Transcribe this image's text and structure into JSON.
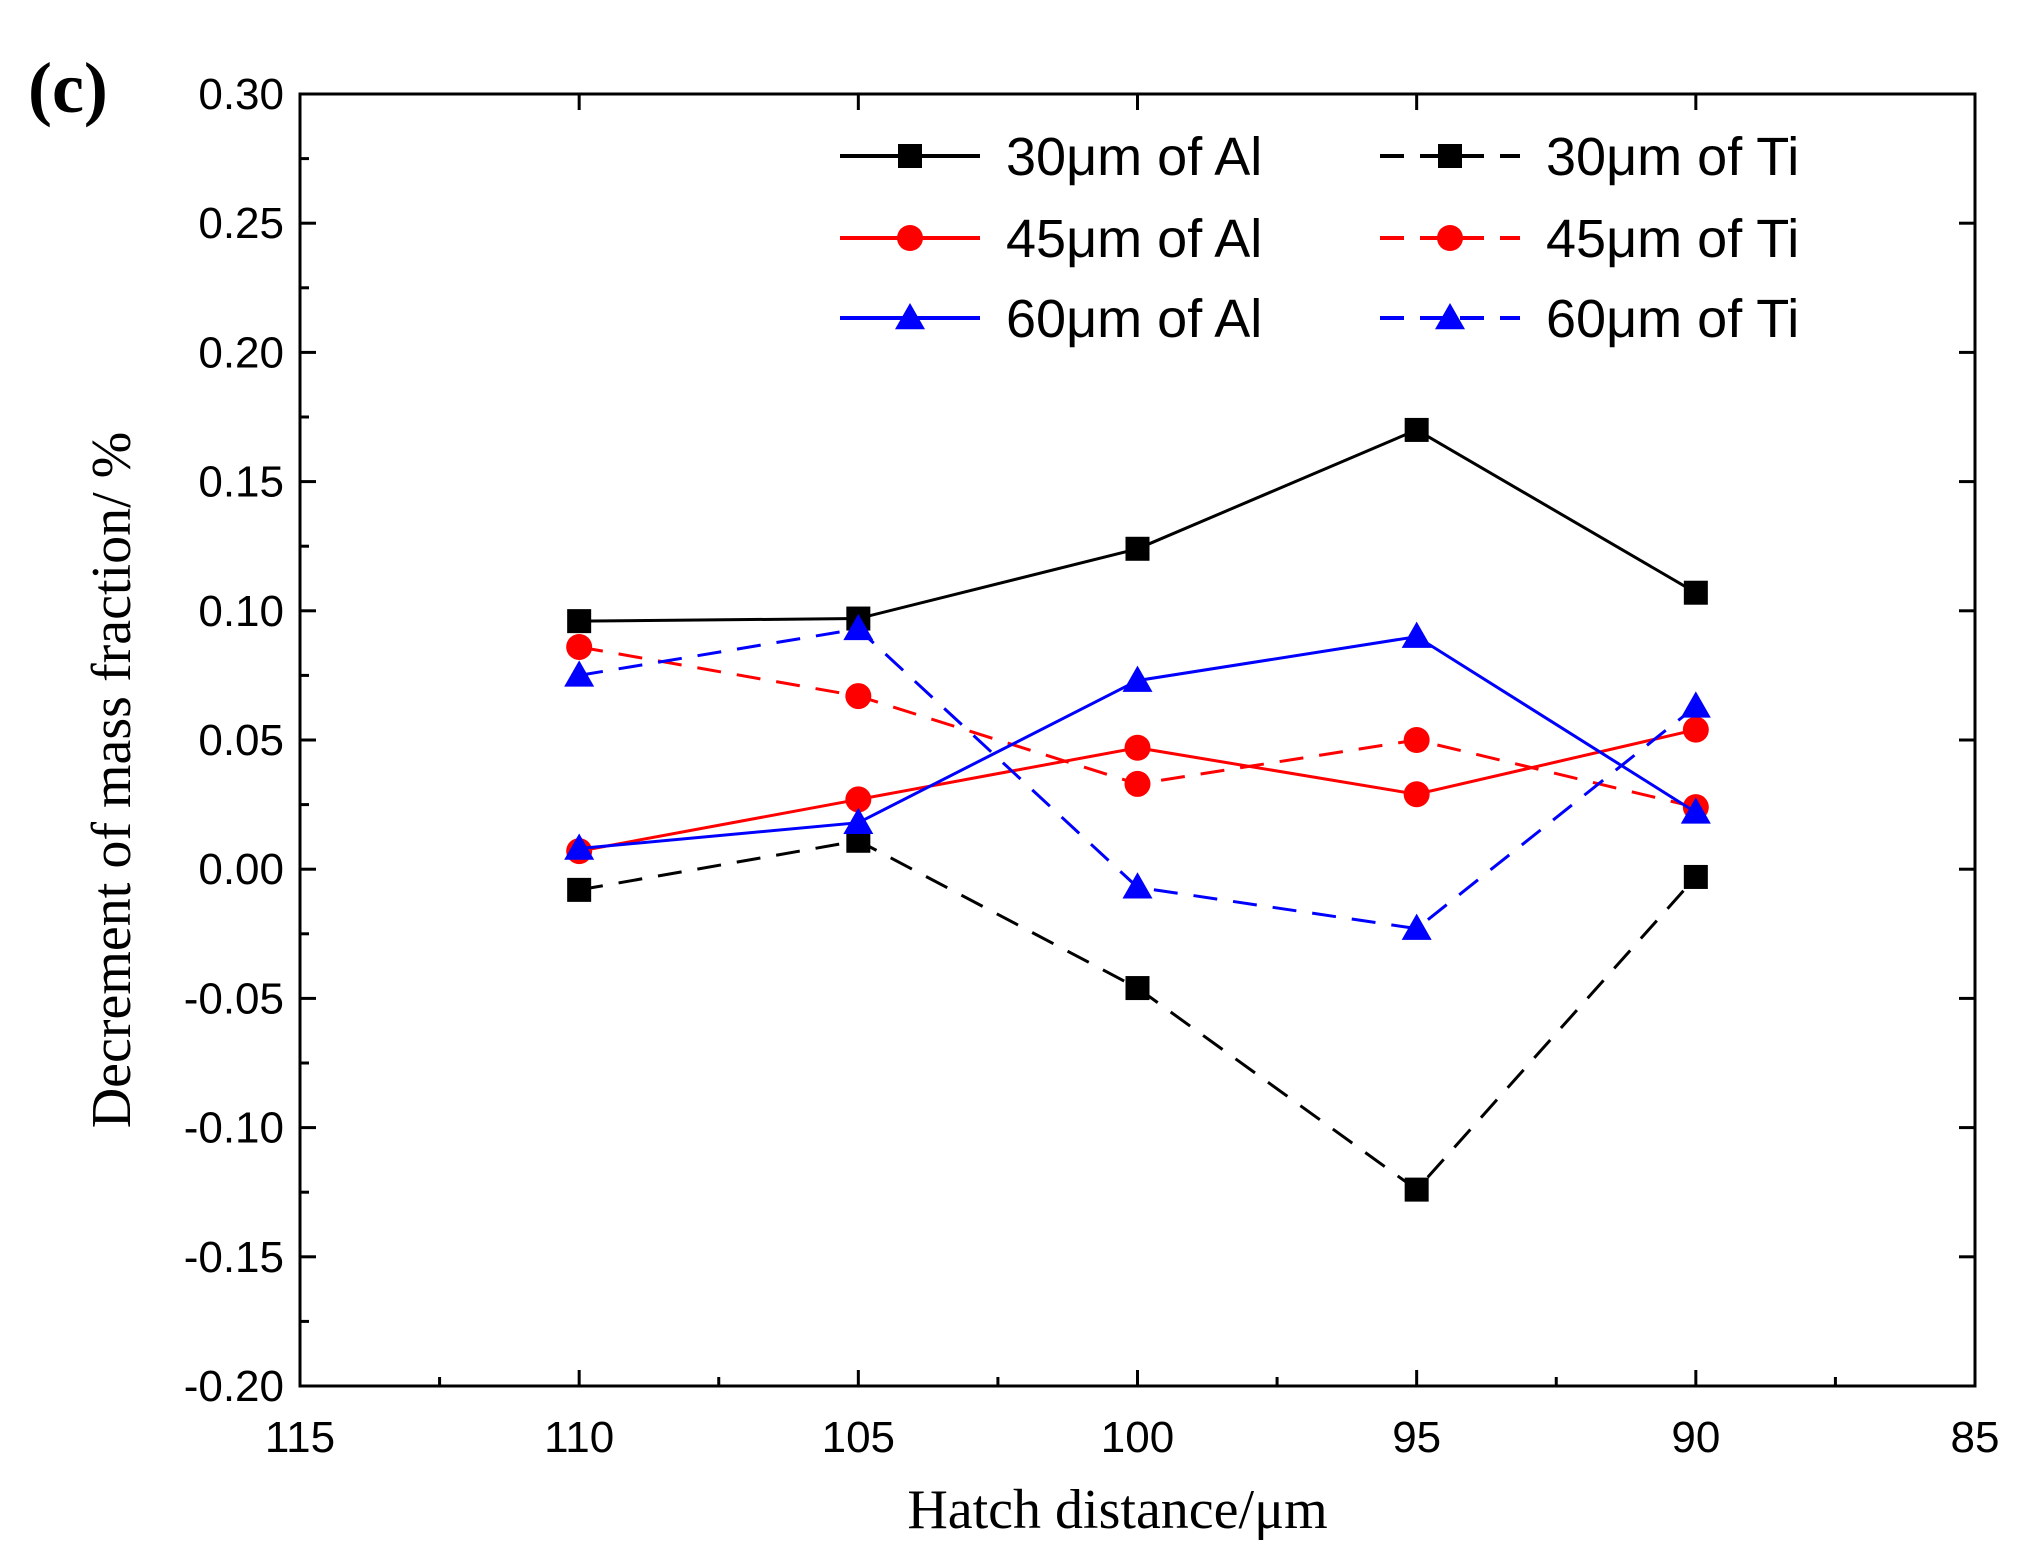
{
  "panel_label": "(c)",
  "chart_data": {
    "type": "line",
    "title": "",
    "xlabel": "Hatch distance/μm",
    "ylabel": "Decrement of mass fraction/ %",
    "xlim": [
      115,
      85
    ],
    "ylim": [
      -0.2,
      0.3
    ],
    "x_ticks": [
      "115",
      "110",
      "105",
      "100",
      "95",
      "90",
      "85"
    ],
    "y_ticks": [
      "-0.20",
      "-0.15",
      "-0.10",
      "-0.05",
      "0.00",
      "0.05",
      "0.10",
      "0.15",
      "0.20",
      "0.25",
      "0.30"
    ],
    "x": [
      110,
      105,
      100,
      95,
      90
    ],
    "legend_position": "top-right",
    "series": [
      {
        "name": "30μm of Al",
        "color": "#000000",
        "marker": "square",
        "dashed": false,
        "values": [
          0.096,
          0.097,
          0.124,
          0.17,
          0.107
        ]
      },
      {
        "name": "30μm of Ti",
        "color": "#000000",
        "marker": "square",
        "dashed": true,
        "values": [
          -0.008,
          0.011,
          -0.046,
          -0.124,
          -0.003
        ]
      },
      {
        "name": "45μm of Al",
        "color": "#ff0000",
        "marker": "circle",
        "dashed": false,
        "values": [
          0.007,
          0.027,
          0.047,
          0.029,
          0.054
        ]
      },
      {
        "name": "45μm of Ti",
        "color": "#ff0000",
        "marker": "circle",
        "dashed": true,
        "values": [
          0.086,
          0.067,
          0.033,
          0.05,
          0.024
        ]
      },
      {
        "name": "60μm of Al",
        "color": "#0000ff",
        "marker": "triangle",
        "dashed": false,
        "values": [
          0.008,
          0.018,
          0.073,
          0.09,
          0.022
        ]
      },
      {
        "name": "60μm of Ti",
        "color": "#0000ff",
        "marker": "triangle",
        "dashed": true,
        "values": [
          0.075,
          0.093,
          -0.007,
          -0.023,
          0.063
        ]
      }
    ]
  }
}
